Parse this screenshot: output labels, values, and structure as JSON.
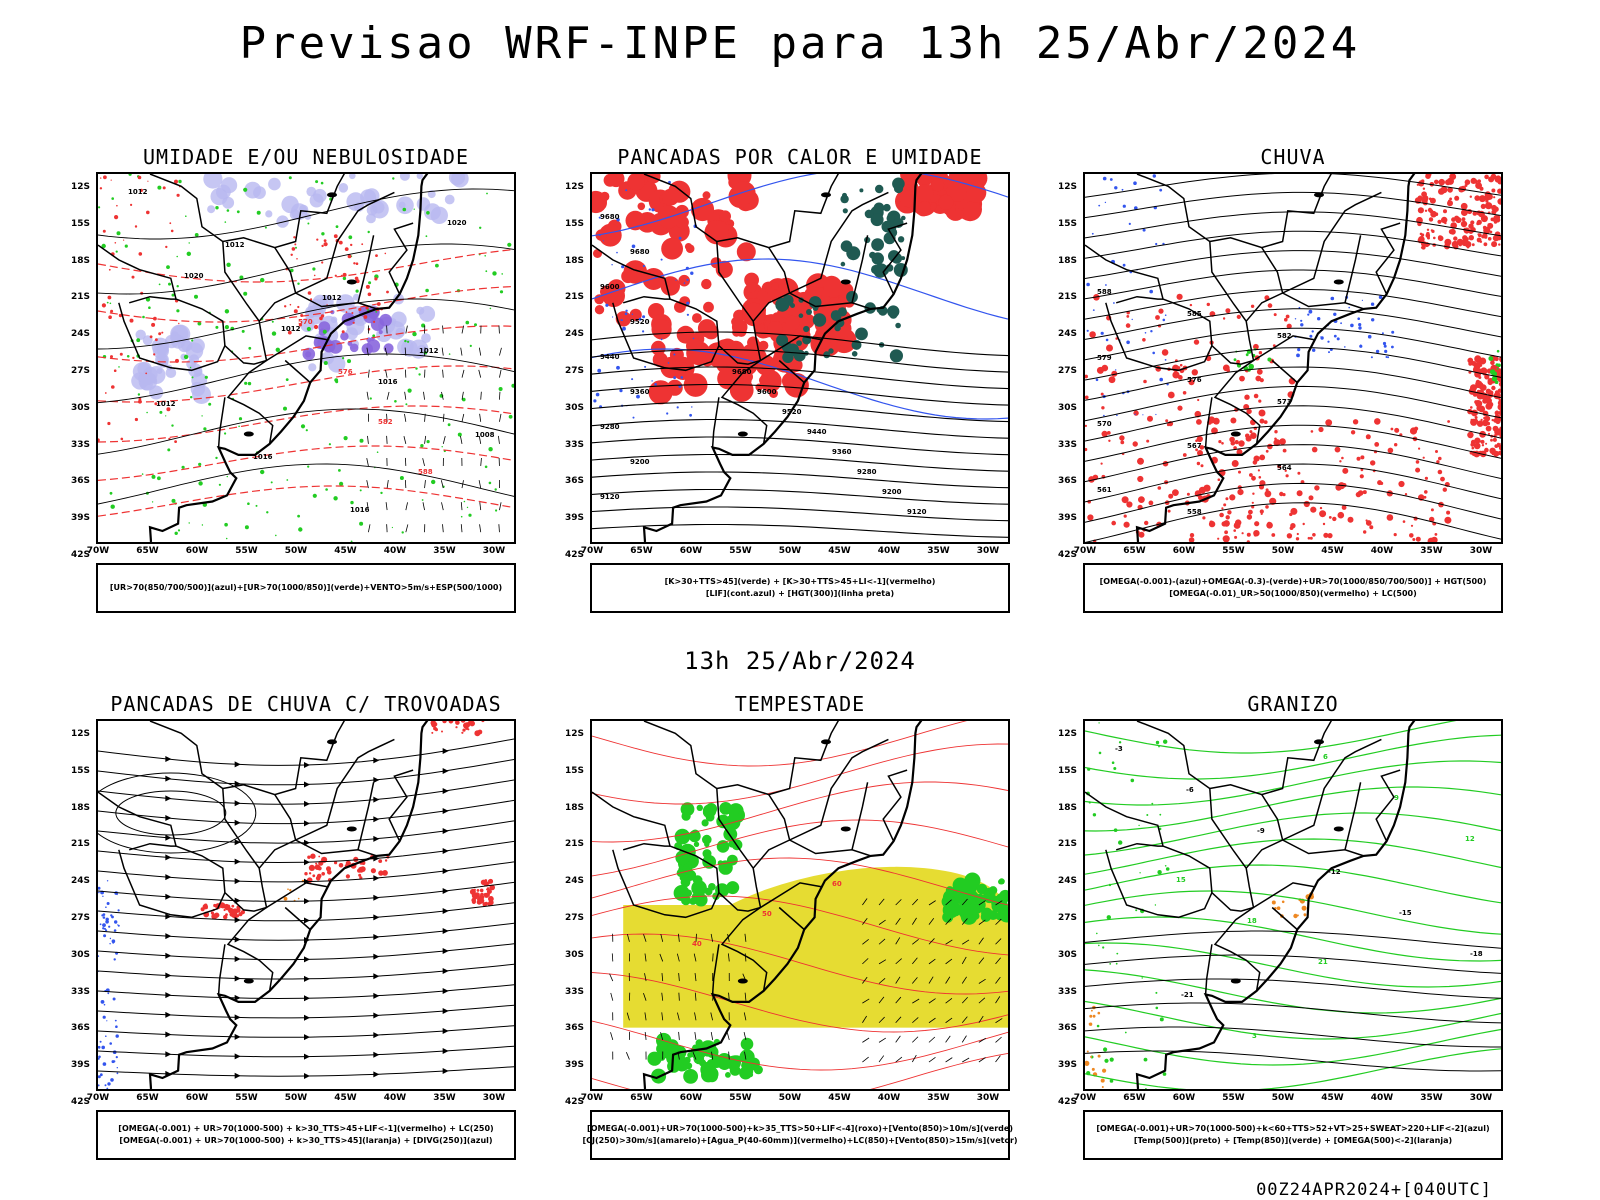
{
  "main_title": "Previsao WRF-INPE  para 13h 25/Abr/2024",
  "mid_date": "13h 25/Abr/2024",
  "footer_code": "00Z24APR2024+[040UTC]",
  "axes": {
    "lat_labels": [
      "12S",
      "15S",
      "18S",
      "21S",
      "24S",
      "27S",
      "30S",
      "33S",
      "36S",
      "39S",
      "42S"
    ],
    "lon_labels": [
      "70W",
      "65W",
      "60W",
      "55W",
      "50W",
      "45W",
      "40W",
      "35W",
      "30W"
    ]
  },
  "panels": [
    {
      "id": "umidade",
      "title": "UMIDADE E/OU NEBULOSIDADE",
      "legend": [
        "[UR>70(850/700/500)](azul)+[UR>70(1000/850)](verde)+VENTO>5m/s+ESP(500/1000)"
      ],
      "contour_labels": [
        "1012",
        "1012",
        "1012",
        "1012",
        "1012",
        "1016",
        "1016",
        "1020",
        "1020",
        "1012",
        "1016",
        "1008",
        "570",
        "576",
        "582",
        "588"
      ]
    },
    {
      "id": "pancadas-calor",
      "title": "PANCADAS POR CALOR E UMIDADE",
      "legend": [
        "[K>30+TTS>45](verde) + [K>30+TTS>45+LI<-1](vermelho)",
        "[LIF](cont.azul) + [HGT(300)](linha preta)"
      ],
      "contour_labels": [
        "9680",
        "9680",
        "9600",
        "9520",
        "9440",
        "9360",
        "9280",
        "9200",
        "9120",
        "9680",
        "9600",
        "9520",
        "9440",
        "9360",
        "9280",
        "9200",
        "9120"
      ]
    },
    {
      "id": "chuva",
      "title": "CHUVA",
      "legend": [
        "[OMEGA(-0.001)-(azul)+OMEGA(-0.3)-(verde)+UR>70(1000/850/700/500)] + HGT(500)",
        "[OMEGA(-0.01)_UR>50(1000/850)(vermelho) + LC(500)"
      ],
      "contour_labels": [
        "588",
        "585",
        "582",
        "579",
        "576",
        "573",
        "570",
        "567",
        "564",
        "561",
        "558"
      ]
    },
    {
      "id": "trovoadas",
      "title": "PANCADAS DE CHUVA C/ TROVOADAS",
      "legend": [
        "[OMEGA(-0.001) + UR>70(1000-500) + k>30_TTS>45+LIF<-1](vermelho) + LC(250)",
        "[OMEGA(-0.001) + UR>70(1000-500) + k>30_TTS>45](laranja) + [DIVG(250)](azul)"
      ],
      "contour_labels": []
    },
    {
      "id": "tempestade",
      "title": "TEMPESTADE",
      "legend": [
        "[OMEGA(-0.001)+UR>70(1000-500)+k>35_TTS>50+LIF<-4](roxo)+[Vento(850)>10m/s](verde)",
        "[CJ(250)>30m/s](amarelo)+[Agua_P(40-60mm)](vermelho)+LC(850)+[Vento(850)>15m/s](vetor)"
      ],
      "contour_labels": [
        "40",
        "50",
        "60"
      ]
    },
    {
      "id": "granizo",
      "title": "GRANIZO",
      "legend": [
        "[OMEGA(-0.001)+UR>70(1000-500)+k<60+TTS>52+VT>25+SWEAT>220+LIF<-2](azul)",
        "[Temp(500)](preto) + [Temp(850)](verde) + [OMEGA(500)<-2](laranja)"
      ],
      "contour_labels": [
        "-3",
        "-6",
        "-9",
        "-12",
        "-15",
        "-18",
        "-21",
        "3",
        "6",
        "9",
        "12",
        "15",
        "18",
        "21"
      ]
    }
  ],
  "colors": {
    "green": "#22cc22",
    "red": "#ee3333",
    "blue": "#3355ee",
    "purple": "#8866dd",
    "lavender": "#b8b8f0",
    "darkteal": "#1f5a52",
    "yellow": "#e6dc32",
    "orange": "#ee8822",
    "black": "#000000"
  }
}
